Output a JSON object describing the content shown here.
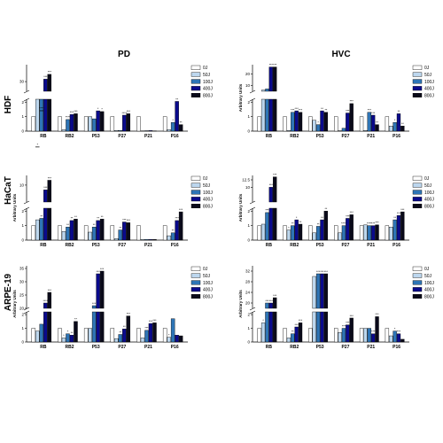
{
  "columns": [
    "PD",
    "HVC"
  ],
  "rows": [
    "HDF",
    "HaCaT",
    "ARPE-19"
  ],
  "legend": [
    "0J",
    "50J",
    "100J",
    "400J",
    "800J"
  ],
  "colors": [
    "#ffffff",
    "#bdd7ee",
    "#2e75b6",
    "#0a0a8c",
    "#0a0a1a"
  ],
  "chart_data": [
    {
      "type": "bar",
      "column": "PD",
      "row": "HDF",
      "ylabel": "",
      "categories": [
        "RB",
        "RB2",
        "P53",
        "P27",
        "P21",
        "P16"
      ],
      "lower_ticks": [
        0,
        1,
        2
      ],
      "upper_ticks": [
        30
      ],
      "lower_max": 2.2,
      "upper_min": 26,
      "upper_max": 37,
      "series": [
        {
          "name": "0J",
          "values": [
            1,
            1.0,
            1.0,
            1.0,
            1.0,
            1.0
          ]
        },
        {
          "name": "50J",
          "values": [
            3,
            0.1,
            1.0,
            0.05,
            0.02,
            0.1
          ]
        },
        {
          "name": "100J",
          "values": [
            18,
            0.8,
            0.85,
            0.05,
            0.03,
            0.6
          ]
        },
        {
          "name": "400J",
          "values": [
            31,
            1.15,
            1.4,
            1.1,
            0.04,
            2.05
          ]
        },
        {
          "name": "800J",
          "values": [
            33,
            1.2,
            1.35,
            1.2,
            0.02,
            0.45
          ]
        }
      ],
      "annotations": [
        [
          "",
          "*",
          "****",
          "***",
          "***"
        ],
        [
          "",
          "",
          "****",
          "***",
          "***"
        ],
        [
          "",
          "",
          "",
          "*",
          "*"
        ],
        [
          "",
          "",
          "",
          "****",
          "***"
        ],
        [
          "",
          "",
          "",
          "",
          ""
        ],
        [
          "",
          "",
          "*",
          "**",
          "**"
        ]
      ]
    },
    {
      "type": "bar",
      "column": "HVC",
      "row": "HDF",
      "ylabel": "Arbitrary Units",
      "categories": [
        "RB",
        "RB2",
        "P53",
        "P27",
        "P21",
        "P16"
      ],
      "lower_ticks": [
        0,
        1,
        2
      ],
      "upper_ticks": [
        10,
        20
      ],
      "lower_max": 2.2,
      "upper_min": 5,
      "upper_max": 28,
      "series": [
        {
          "name": "0J",
          "values": [
            1,
            1.0,
            1.0,
            1.0,
            1.0,
            1.0
          ]
        },
        {
          "name": "50J",
          "values": [
            6,
            0.05,
            0.75,
            0.03,
            0.05,
            0.35
          ]
        },
        {
          "name": "100J",
          "values": [
            7,
            1.3,
            0.45,
            0.2,
            1.3,
            0.6
          ]
        },
        {
          "name": "400J",
          "values": [
            26,
            1.4,
            1.4,
            1.25,
            1.1,
            1.2
          ]
        },
        {
          "name": "800J",
          "values": [
            26,
            1.3,
            1.3,
            1.9,
            0.45,
            0.35
          ]
        }
      ],
      "annotations": [
        [
          "",
          "",
          "",
          "***",
          "***"
        ],
        [
          "",
          "",
          "***",
          "***",
          "***"
        ],
        [
          "",
          "",
          "*",
          "**",
          "**"
        ],
        [
          "",
          "",
          "",
          "***",
          "***"
        ],
        [
          "",
          "",
          "***",
          "***",
          "**"
        ],
        [
          "",
          "",
          "*",
          "**",
          "**"
        ]
      ]
    },
    {
      "type": "bar",
      "column": "PD",
      "row": "HaCaT",
      "ylabel": "Arbitrary Units",
      "categories": [
        "RB",
        "RB2",
        "P53",
        "P27",
        "P21",
        "P16"
      ],
      "lower_ticks": [
        0,
        1,
        2
      ],
      "upper_ticks": [
        10
      ],
      "lower_max": 2.2,
      "upper_min": 3,
      "upper_max": 14,
      "series": [
        {
          "name": "0J",
          "values": [
            1,
            1.0,
            1.0,
            1.0,
            1.0,
            1.0
          ]
        },
        {
          "name": "50J",
          "values": [
            1.4,
            0.6,
            0.55,
            0.1,
            0.05,
            0.3
          ]
        },
        {
          "name": "100J",
          "values": [
            1.5,
            0.9,
            0.9,
            0.7,
            0.05,
            0.5
          ]
        },
        {
          "name": "400J",
          "values": [
            8,
            1.35,
            1.35,
            1.25,
            0.05,
            1.35
          ]
        },
        {
          "name": "800J",
          "values": [
            12,
            1.45,
            1.45,
            1.2,
            0.05,
            1.95
          ]
        }
      ],
      "annotations": [
        [
          "",
          "",
          "**",
          "***",
          "***"
        ],
        [
          "",
          "",
          "**",
          "**",
          "**"
        ],
        [
          "",
          "",
          "**",
          "**",
          "**"
        ],
        [
          "",
          "",
          "**",
          "***",
          "***"
        ],
        [
          "",
          "",
          "",
          "",
          ""
        ],
        [
          "",
          "",
          "**",
          "***",
          "***"
        ]
      ]
    },
    {
      "type": "bar",
      "column": "HVC",
      "row": "HaCaT",
      "ylabel": "Arbitrary Units",
      "categories": [
        "RB",
        "RB2",
        "P53",
        "P27",
        "P21",
        "P16"
      ],
      "lower_ticks": [
        0,
        1,
        2
      ],
      "upper_ticks": [
        10,
        12.5
      ],
      "lower_max": 2.2,
      "upper_min": 5,
      "upper_max": 14,
      "series": [
        {
          "name": "0J",
          "values": [
            1,
            1.0,
            1.0,
            1.0,
            1.0,
            1.0
          ]
        },
        {
          "name": "50J",
          "values": [
            1.1,
            0.7,
            0.5,
            0.5,
            1.05,
            0.9
          ]
        },
        {
          "name": "100J",
          "values": [
            1.9,
            1.0,
            0.95,
            1.0,
            1.0,
            1.4
          ]
        },
        {
          "name": "400J",
          "values": [
            10,
            1.4,
            1.4,
            1.5,
            1.0,
            1.7
          ]
        },
        {
          "name": "800J",
          "values": [
            13.5,
            1.1,
            2.0,
            1.75,
            1.05,
            1.95
          ]
        }
      ],
      "annotations": [
        [
          "",
          "",
          "***",
          "***",
          "***"
        ],
        [
          "",
          "*",
          "**",
          "*",
          "**"
        ],
        [
          "",
          "",
          "**",
          "**",
          "**"
        ],
        [
          "",
          "",
          "****",
          "***",
          "***"
        ],
        [
          "",
          "",
          "****",
          "***",
          "***"
        ],
        [
          "",
          "",
          "**",
          "***",
          "***"
        ]
      ]
    },
    {
      "type": "bar",
      "column": "PD",
      "row": "ARPE-19",
      "ylabel": "Arbitrary Units",
      "categories": [
        "RB",
        "RB2",
        "P53",
        "P27",
        "P21",
        "P16"
      ],
      "lower_ticks": [
        0,
        1,
        2
      ],
      "upper_ticks": [
        20,
        25,
        30,
        35
      ],
      "lower_max": 2.2,
      "upper_min": 20,
      "upper_max": 36,
      "series": [
        {
          "name": "0J",
          "values": [
            1,
            1.0,
            1.0,
            1.0,
            1.0,
            1.0
          ]
        },
        {
          "name": "50J",
          "values": [
            0.8,
            0.3,
            1.0,
            0.25,
            0.3,
            0.35
          ]
        },
        {
          "name": "100J",
          "values": [
            1.3,
            0.6,
            21,
            0.55,
            0.85,
            1.7
          ]
        },
        {
          "name": "400J",
          "values": [
            22,
            0.5,
            33,
            0.95,
            1.35,
            0.5
          ]
        },
        {
          "name": "800J",
          "values": [
            26,
            1.5,
            34,
            1.9,
            1.4,
            0.45
          ]
        }
      ],
      "annotations": [
        [
          "",
          "",
          "",
          "****",
          "***"
        ],
        [
          "",
          "*",
          "*",
          "**",
          "**"
        ],
        [
          "",
          "",
          "***",
          "***",
          "***"
        ],
        [
          "",
          "",
          "**",
          "**",
          "***"
        ],
        [
          "",
          "",
          "***",
          "***",
          "***"
        ],
        [
          "",
          "*",
          "",
          "",
          ""
        ]
      ]
    },
    {
      "type": "bar",
      "column": "HVC",
      "row": "ARPE-19",
      "ylabel": "Arbitrary Units",
      "categories": [
        "RB",
        "RB2",
        "P53",
        "P27",
        "P21",
        "P16"
      ],
      "lower_ticks": [
        0,
        1,
        2
      ],
      "upper_ticks": [
        20,
        24,
        28,
        32
      ],
      "lower_max": 2.2,
      "upper_min": 18,
      "upper_max": 34,
      "series": [
        {
          "name": "0J",
          "values": [
            1,
            1.0,
            1.0,
            1.0,
            1.0,
            1.0
          ]
        },
        {
          "name": "50J",
          "values": [
            1.4,
            0.3,
            30,
            0.7,
            1.0,
            0.45
          ]
        },
        {
          "name": "100J",
          "values": [
            20,
            0.6,
            31,
            1.0,
            1.0,
            0.8
          ]
        },
        {
          "name": "400J",
          "values": [
            20,
            1.1,
            31,
            1.25,
            0.6,
            0.6
          ]
        },
        {
          "name": "800J",
          "values": [
            22,
            1.4,
            31,
            1.75,
            1.85,
            0.2
          ]
        }
      ],
      "annotations": [
        [
          "",
          "*",
          "***",
          "***",
          "***"
        ],
        [
          "",
          "",
          "**",
          "***",
          "***"
        ],
        [
          "",
          "",
          "***",
          "***",
          "***"
        ],
        [
          "",
          "",
          "***",
          "***",
          "***"
        ],
        [
          "",
          "",
          "",
          "***",
          "***"
        ],
        [
          "",
          "",
          "*",
          "***",
          ""
        ]
      ]
    }
  ]
}
